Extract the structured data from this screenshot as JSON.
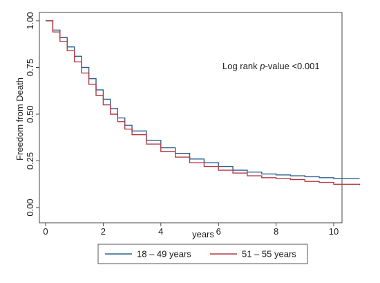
{
  "chart_data": {
    "type": "line",
    "subtype": "kaplan-meier step curves",
    "xlabel": "years",
    "ylabel": "Freedom from Death",
    "xlim": [
      0,
      11
    ],
    "ylim": [
      0,
      1
    ],
    "x_ticks": [
      "0",
      "2",
      "4",
      "6",
      "8",
      "10"
    ],
    "y_ticks": [
      "0.00",
      "0.25",
      "0.50",
      "0.75",
      "1.00"
    ],
    "grid": false,
    "annotation": {
      "prefix": "Log rank ",
      "italic": "p",
      "suffix": "-value <0.001"
    },
    "legend_position": "bottom",
    "series": [
      {
        "name": "18 – 49 years",
        "color": "#2e5f8f",
        "x": [
          0,
          0.25,
          0.5,
          0.75,
          1,
          1.25,
          1.5,
          1.75,
          2,
          2.25,
          2.5,
          2.75,
          3,
          3.5,
          4,
          4.5,
          5,
          5.5,
          6,
          6.5,
          7,
          7.5,
          8,
          8.5,
          9,
          9.5,
          10,
          10.9
        ],
        "y": [
          1.0,
          0.95,
          0.91,
          0.86,
          0.81,
          0.75,
          0.69,
          0.63,
          0.58,
          0.53,
          0.48,
          0.44,
          0.41,
          0.36,
          0.32,
          0.29,
          0.26,
          0.24,
          0.22,
          0.2,
          0.19,
          0.18,
          0.175,
          0.17,
          0.165,
          0.16,
          0.155,
          0.155
        ]
      },
      {
        "name": "51 – 55 years",
        "color": "#b43a43",
        "x": [
          0,
          0.25,
          0.5,
          0.75,
          1,
          1.25,
          1.5,
          1.75,
          2,
          2.25,
          2.5,
          2.75,
          3,
          3.5,
          4,
          4.5,
          5,
          5.5,
          6,
          6.5,
          7,
          7.5,
          8,
          8.5,
          9,
          9.5,
          10,
          10.9
        ],
        "y": [
          1.0,
          0.94,
          0.89,
          0.84,
          0.78,
          0.72,
          0.66,
          0.6,
          0.55,
          0.5,
          0.46,
          0.42,
          0.39,
          0.34,
          0.3,
          0.27,
          0.24,
          0.22,
          0.2,
          0.185,
          0.17,
          0.16,
          0.155,
          0.15,
          0.14,
          0.135,
          0.125,
          0.12
        ]
      }
    ]
  }
}
